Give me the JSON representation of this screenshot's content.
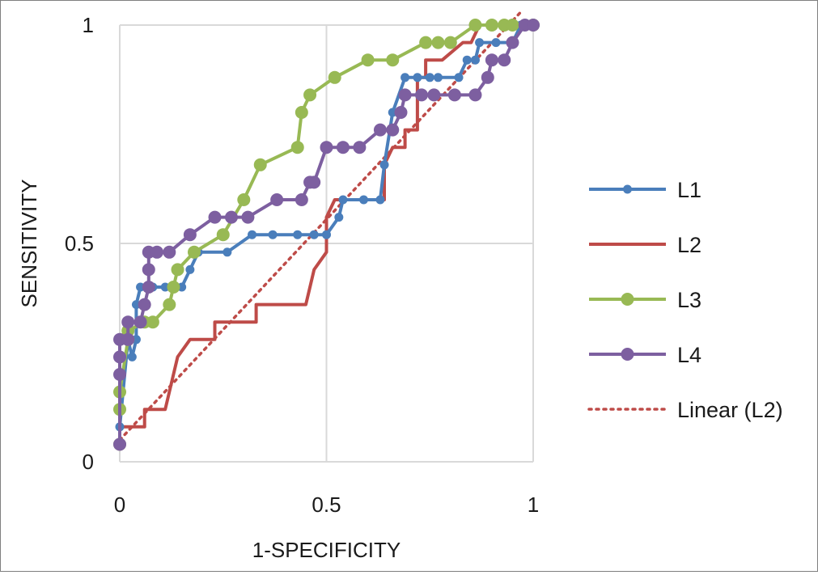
{
  "chart_data": {
    "type": "line",
    "xlabel": "1-SPECIFICITY",
    "ylabel": "SENSITIVITY",
    "xlim": [
      0,
      1
    ],
    "ylim": [
      0,
      1
    ],
    "x_ticks": [
      "0",
      "0.5",
      "1"
    ],
    "y_ticks": [
      "0",
      "0.5",
      "1"
    ],
    "grid": true,
    "legend_position": "right",
    "series": [
      {
        "name": "L1",
        "color": "#4a7ebb",
        "marker": "small-circle",
        "line": "solid",
        "points": [
          [
            0.0,
            0.04
          ],
          [
            0.0,
            0.08
          ],
          [
            0.02,
            0.28
          ],
          [
            0.03,
            0.24
          ],
          [
            0.04,
            0.28
          ],
          [
            0.04,
            0.36
          ],
          [
            0.05,
            0.4
          ],
          [
            0.08,
            0.4
          ],
          [
            0.11,
            0.4
          ],
          [
            0.15,
            0.4
          ],
          [
            0.17,
            0.44
          ],
          [
            0.19,
            0.48
          ],
          [
            0.26,
            0.48
          ],
          [
            0.32,
            0.52
          ],
          [
            0.37,
            0.52
          ],
          [
            0.43,
            0.52
          ],
          [
            0.47,
            0.52
          ],
          [
            0.5,
            0.52
          ],
          [
            0.53,
            0.56
          ],
          [
            0.54,
            0.6
          ],
          [
            0.59,
            0.6
          ],
          [
            0.63,
            0.6
          ],
          [
            0.64,
            0.68
          ],
          [
            0.66,
            0.8
          ],
          [
            0.69,
            0.88
          ],
          [
            0.72,
            0.88
          ],
          [
            0.75,
            0.88
          ],
          [
            0.77,
            0.88
          ],
          [
            0.82,
            0.88
          ],
          [
            0.84,
            0.92
          ],
          [
            0.86,
            0.92
          ],
          [
            0.87,
            0.96
          ],
          [
            0.91,
            0.96
          ],
          [
            0.95,
            0.96
          ],
          [
            0.97,
            1.0
          ],
          [
            1.0,
            1.0
          ]
        ]
      },
      {
        "name": "L2",
        "color": "#be4b48",
        "marker": "none",
        "line": "solid",
        "points": [
          [
            0.0,
            0.04
          ],
          [
            0.0,
            0.08
          ],
          [
            0.06,
            0.08
          ],
          [
            0.06,
            0.12
          ],
          [
            0.11,
            0.12
          ],
          [
            0.14,
            0.24
          ],
          [
            0.17,
            0.28
          ],
          [
            0.23,
            0.28
          ],
          [
            0.23,
            0.32
          ],
          [
            0.33,
            0.32
          ],
          [
            0.33,
            0.36
          ],
          [
            0.45,
            0.36
          ],
          [
            0.47,
            0.44
          ],
          [
            0.5,
            0.48
          ],
          [
            0.5,
            0.56
          ],
          [
            0.52,
            0.6
          ],
          [
            0.64,
            0.6
          ],
          [
            0.64,
            0.68
          ],
          [
            0.66,
            0.72
          ],
          [
            0.69,
            0.72
          ],
          [
            0.69,
            0.76
          ],
          [
            0.72,
            0.76
          ],
          [
            0.72,
            0.88
          ],
          [
            0.74,
            0.88
          ],
          [
            0.74,
            0.92
          ],
          [
            0.78,
            0.92
          ],
          [
            0.83,
            0.96
          ],
          [
            0.85,
            0.96
          ],
          [
            0.87,
            1.0
          ],
          [
            1.0,
            1.0
          ]
        ]
      },
      {
        "name": "L3",
        "color": "#98b954",
        "marker": "large-circle",
        "line": "solid",
        "points": [
          [
            0.0,
            0.04
          ],
          [
            0.0,
            0.12
          ],
          [
            0.0,
            0.16
          ],
          [
            0.02,
            0.28
          ],
          [
            0.02,
            0.3
          ],
          [
            0.06,
            0.32
          ],
          [
            0.08,
            0.32
          ],
          [
            0.12,
            0.36
          ],
          [
            0.13,
            0.4
          ],
          [
            0.14,
            0.44
          ],
          [
            0.18,
            0.48
          ],
          [
            0.25,
            0.52
          ],
          [
            0.3,
            0.6
          ],
          [
            0.34,
            0.68
          ],
          [
            0.43,
            0.72
          ],
          [
            0.44,
            0.8
          ],
          [
            0.46,
            0.84
          ],
          [
            0.52,
            0.88
          ],
          [
            0.6,
            0.92
          ],
          [
            0.66,
            0.92
          ],
          [
            0.74,
            0.96
          ],
          [
            0.77,
            0.96
          ],
          [
            0.8,
            0.96
          ],
          [
            0.86,
            1.0
          ],
          [
            0.9,
            1.0
          ],
          [
            0.93,
            1.0
          ],
          [
            0.95,
            1.0
          ],
          [
            1.0,
            1.0
          ]
        ]
      },
      {
        "name": "L4",
        "color": "#7d5fa0",
        "marker": "large-circle",
        "line": "solid",
        "points": [
          [
            0.0,
            0.04
          ],
          [
            0.0,
            0.2
          ],
          [
            0.0,
            0.24
          ],
          [
            0.0,
            0.28
          ],
          [
            0.02,
            0.28
          ],
          [
            0.02,
            0.32
          ],
          [
            0.05,
            0.32
          ],
          [
            0.06,
            0.36
          ],
          [
            0.07,
            0.4
          ],
          [
            0.07,
            0.44
          ],
          [
            0.07,
            0.48
          ],
          [
            0.09,
            0.48
          ],
          [
            0.12,
            0.48
          ],
          [
            0.17,
            0.52
          ],
          [
            0.23,
            0.56
          ],
          [
            0.27,
            0.56
          ],
          [
            0.31,
            0.56
          ],
          [
            0.38,
            0.6
          ],
          [
            0.44,
            0.6
          ],
          [
            0.46,
            0.64
          ],
          [
            0.47,
            0.64
          ],
          [
            0.5,
            0.72
          ],
          [
            0.54,
            0.72
          ],
          [
            0.58,
            0.72
          ],
          [
            0.63,
            0.76
          ],
          [
            0.66,
            0.76
          ],
          [
            0.68,
            0.8
          ],
          [
            0.69,
            0.84
          ],
          [
            0.73,
            0.84
          ],
          [
            0.76,
            0.84
          ],
          [
            0.81,
            0.84
          ],
          [
            0.86,
            0.84
          ],
          [
            0.89,
            0.88
          ],
          [
            0.9,
            0.92
          ],
          [
            0.93,
            0.92
          ],
          [
            0.95,
            0.96
          ],
          [
            0.98,
            1.0
          ],
          [
            1.0,
            1.0
          ]
        ]
      },
      {
        "name": "Linear (L2)",
        "color": "#be4b48",
        "marker": "none",
        "line": "dotted",
        "points": [
          [
            0.0,
            0.05
          ],
          [
            0.97,
            1.03
          ]
        ]
      }
    ]
  }
}
